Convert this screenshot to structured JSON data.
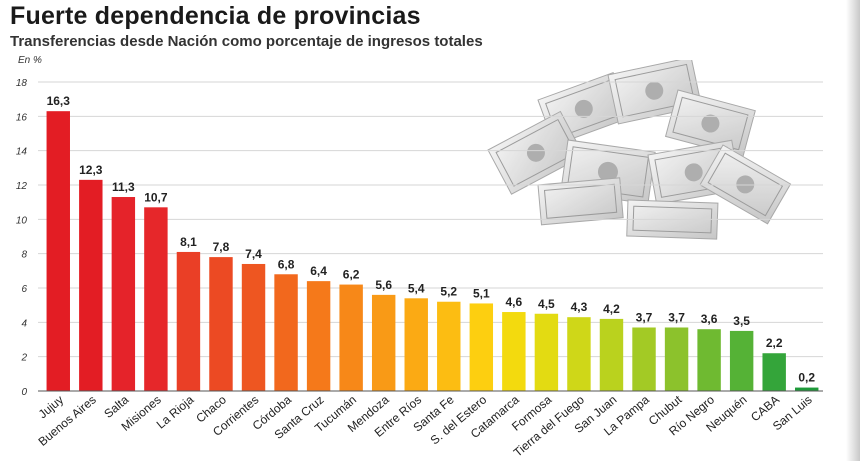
{
  "header": {
    "title": "Fuerte dependencia de provincias",
    "subtitle": "Transferencias desde Nación como porcentaje de ingresos totales",
    "unit": "En %"
  },
  "chart_data": {
    "type": "bar",
    "title": "Fuerte dependencia de provincias",
    "subtitle": "Transferencias desde Nación como porcentaje de ingresos totales",
    "ylabel": "En %",
    "ylim": [
      0,
      18
    ],
    "yticks": [
      0,
      2,
      4,
      6,
      8,
      10,
      12,
      14,
      16,
      18
    ],
    "grid": true,
    "categories": [
      "Jujuy",
      "Buenos Aires",
      "Salta",
      "Misiones",
      "La Rioja",
      "Chaco",
      "Corrientes",
      "Córdoba",
      "Santa Cruz",
      "Tucumán",
      "Mendoza",
      "Entre Ríos",
      "Santa Fe",
      "S. del Estero",
      "Catamarca",
      "Formosa",
      "Tierra del Fuego",
      "San Juan",
      "La Pampa",
      "Chubut",
      "Río Negro",
      "Neuquén",
      "CABA",
      "San Luis"
    ],
    "values": [
      16.3,
      12.3,
      11.3,
      10.7,
      8.1,
      7.8,
      7.4,
      6.8,
      6.4,
      6.2,
      5.6,
      5.4,
      5.2,
      5.1,
      4.6,
      4.5,
      4.3,
      4.2,
      3.7,
      3.7,
      3.6,
      3.5,
      2.2,
      0.2
    ],
    "value_labels": [
      "16,3",
      "12,3",
      "11,3",
      "10,7",
      "8,1",
      "7,8",
      "7,4",
      "6,8",
      "6,4",
      "6,2",
      "5,6",
      "5,4",
      "5,2",
      "5,1",
      "4,6",
      "4,5",
      "4,3",
      "4,2",
      "3,7",
      "3,7",
      "3,6",
      "3,5",
      "2,2",
      "0,2"
    ],
    "colors": [
      "#e31d24",
      "#e31d24",
      "#e5232a",
      "#e6272a",
      "#ea3f26",
      "#ec4a23",
      "#ee5621",
      "#f2681d",
      "#f5791a",
      "#f78818",
      "#f99a16",
      "#fbaa14",
      "#fcbd12",
      "#fdcf10",
      "#f3da0e",
      "#e3db12",
      "#cfd718",
      "#bad21e",
      "#a3ca25",
      "#8cc22c",
      "#6fba31",
      "#55b236",
      "#34a53a",
      "#1e9a3a"
    ]
  }
}
